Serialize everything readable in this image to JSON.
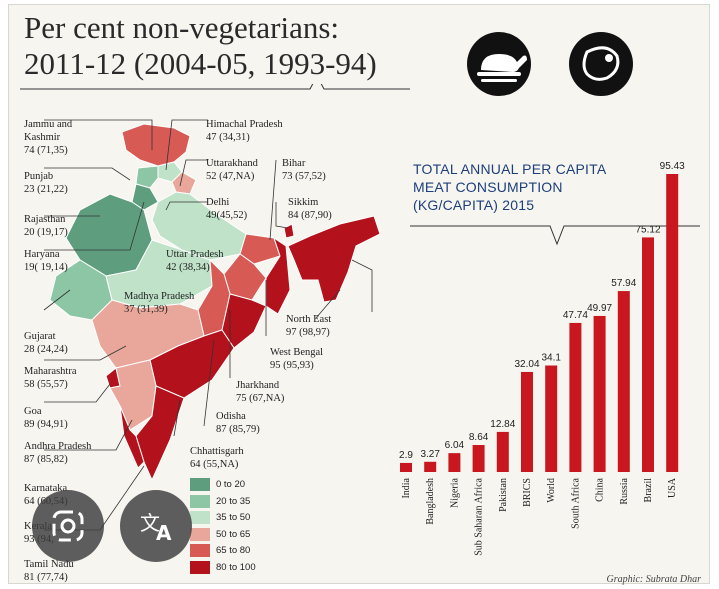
{
  "header": {
    "title_line1": "Per cent non-vegetarians:",
    "title_line2": "2011-12 (2004-05, 1993-94)"
  },
  "icons": [
    "chicken-icon",
    "meat-icon"
  ],
  "map_labels": [
    {
      "name": "Jammu and",
      "name2": "Kashmir",
      "value": "74 (71,35)"
    },
    {
      "name": "Himachal Pradesh",
      "value": "47 (34,31)"
    },
    {
      "name": "Punjab",
      "value": "23 (21,22)"
    },
    {
      "name": "Uttarakhand",
      "value": "52 (47,NA)"
    },
    {
      "name": "Bihar",
      "value": "73 (57,52)"
    },
    {
      "name": "Delhi",
      "value": "49(45,52)"
    },
    {
      "name": "Sikkim",
      "value": "84 (87,90)"
    },
    {
      "name": "Rajasthan",
      "value": "20 (19,17)"
    },
    {
      "name": "Haryana",
      "value": "19( 19,14)"
    },
    {
      "name": "Uttar Pradesh",
      "value": "42 (38,34)"
    },
    {
      "name": "Madhya Pradesh",
      "value": "37 (31,39)"
    },
    {
      "name": "North East",
      "value": "97 (98,97)"
    },
    {
      "name": "Gujarat",
      "value": "28 (24,24)"
    },
    {
      "name": "West Bengal",
      "value": "95 (95,93)"
    },
    {
      "name": "Maharashtra",
      "value": "58 (55,57)"
    },
    {
      "name": "Jharkhand",
      "value": "75 (67,NA)"
    },
    {
      "name": "Goa",
      "value": "89 (94,91)"
    },
    {
      "name": "Odisha",
      "value": "87 (85,79)"
    },
    {
      "name": "Andhra Pradesh",
      "value": "87 (85,82)"
    },
    {
      "name": "Chhattisgarh",
      "value": "64 (55,NA)"
    },
    {
      "name": "Karnataka",
      "value": "64 (60,54)"
    },
    {
      "name": "Kerala",
      "value": "93 (94,"
    },
    {
      "name": "Tamil Nadu",
      "value": "81 (77,74)"
    }
  ],
  "legend": [
    {
      "label": "0 to 20",
      "color": "#5e9e7e"
    },
    {
      "label": "20 to 35",
      "color": "#8cc6a5"
    },
    {
      "label": "35 to 50",
      "color": "#bfe2c9"
    },
    {
      "label": "50 to 65",
      "color": "#e8a79a"
    },
    {
      "label": "65 to 80",
      "color": "#d75a55"
    },
    {
      "label": "80 to 100",
      "color": "#b3111c"
    }
  ],
  "chart_data": {
    "type": "bar",
    "title": "TOTAL ANNUAL PER CAPITA MEAT CONSUMPTION (KG/CAPITA) 2015",
    "title_lines": [
      "TOTAL ANNUAL PER CAPITA",
      "MEAT CONSUMPTION",
      "(KG/CAPITA) 2015"
    ],
    "categories": [
      "India",
      "Bangladesh",
      "Nigeria",
      "Sub Saharan Africa",
      "Pakistan",
      "BRICS",
      "World",
      "South Africa",
      "China",
      "Russia",
      "Brazil",
      "USA"
    ],
    "values": [
      2.9,
      3.27,
      6.04,
      8.64,
      12.84,
      32.04,
      34.1,
      47.74,
      49.97,
      57.94,
      75.12,
      95.43
    ],
    "value_labels": [
      "2.9",
      "3.27",
      "6.04",
      "8.64",
      "12.84",
      "32.04",
      "34.1",
      "47.74",
      "49.97",
      "57.94",
      "75.12",
      "95.43"
    ],
    "ylim": [
      0,
      95.43
    ],
    "bar_color": "#c8171e",
    "grid": false
  },
  "credit": "Graphic: Subrata Dhar"
}
